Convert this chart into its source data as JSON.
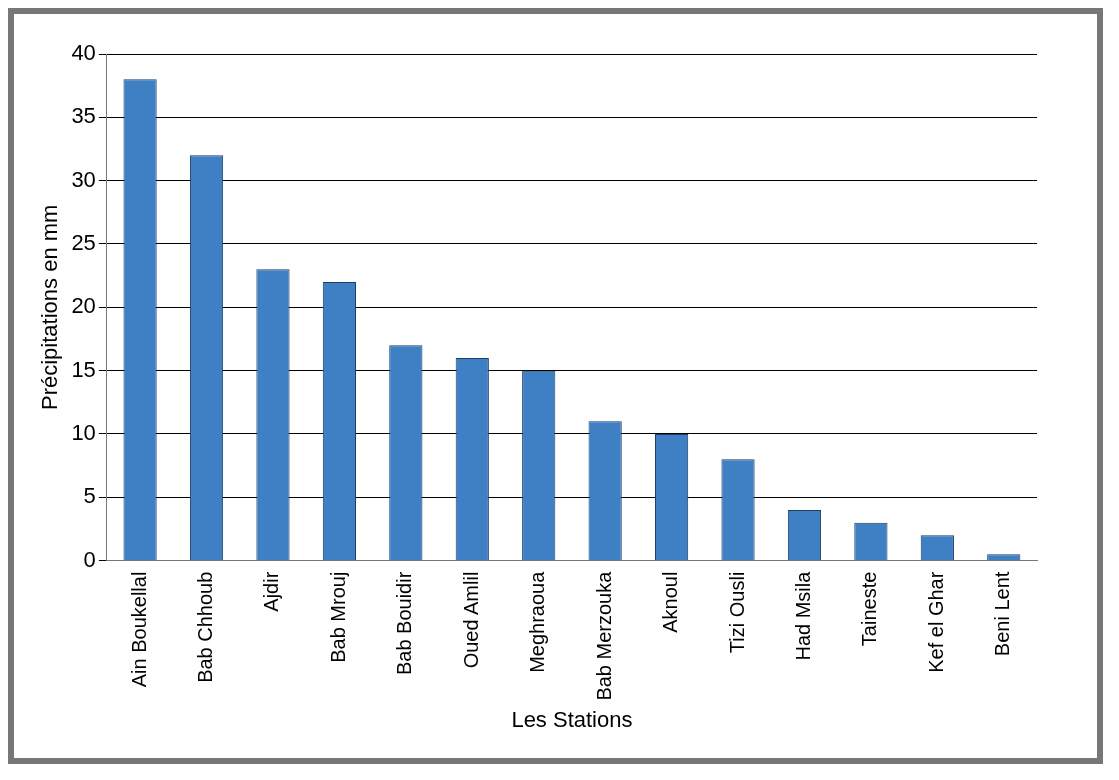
{
  "chart_data": {
    "type": "bar",
    "xlabel": "Les Stations",
    "ylabel": "Précipitations en mm",
    "categories": [
      "Ain Boukellal",
      "Bab Chhoub",
      "Ajdir",
      "Bab Mrouj",
      "Bab Bouidir",
      "Oued Amlil",
      "Meghraoua",
      "Bab Merzouka",
      "Aknoul",
      "Tizi Ousli",
      "Had Msila",
      "Taineste",
      "Kef el Ghar",
      "Beni Lent"
    ],
    "values": [
      38,
      32,
      23,
      22,
      17,
      16,
      15,
      11,
      10,
      8,
      4,
      3,
      2,
      0.5
    ],
    "color": "#3f7fc4",
    "ylim": [
      0,
      40
    ],
    "yticks": [
      0,
      5,
      10,
      15,
      20,
      25,
      30,
      35,
      40
    ],
    "grid": "y"
  }
}
